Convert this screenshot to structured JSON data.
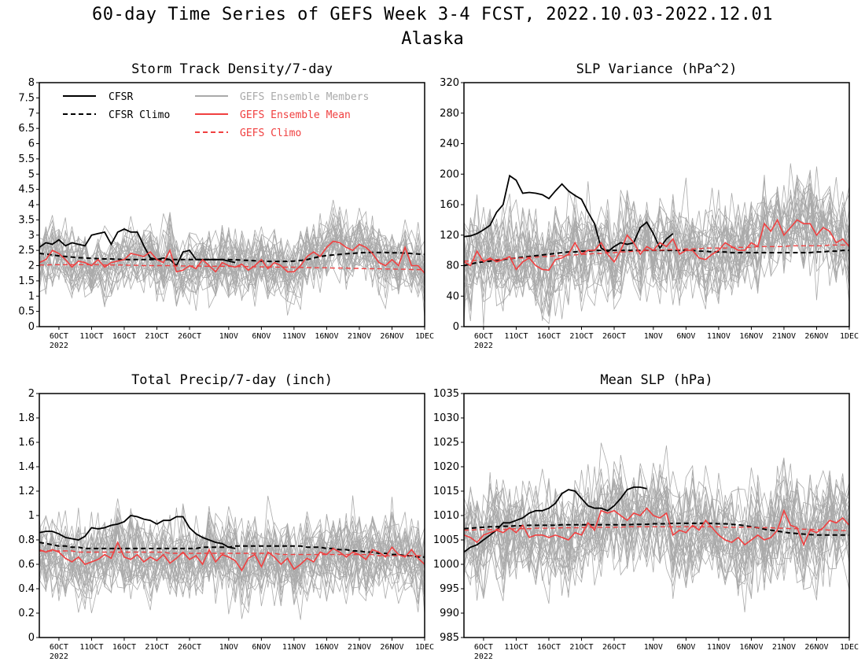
{
  "figure": {
    "title": "60-day Time Series of GEFS Week 3-4 FCST, 2022.10.03-2022.12.01",
    "subtitle": "Alaska"
  },
  "legend": {
    "cfsr": "CFSR",
    "cfsr_climo": "CFSR Climo",
    "gefs_members": "GEFS Ensemble Members",
    "gefs_mean": "GEFS Ensemble Mean",
    "gefs_climo": "GEFS Climo"
  },
  "colors": {
    "cfsr": "#000000",
    "members": "#aaaaaa",
    "gefs": "#f04040"
  },
  "x_ticks": [
    "6OCT",
    "11OCT",
    "16OCT",
    "21OCT",
    "26OCT",
    "1NOV",
    "6NOV",
    "11NOV",
    "16NOV",
    "21NOV",
    "26NOV",
    "1DEC"
  ],
  "x_year": "2022",
  "chart_data": [
    {
      "type": "line",
      "title": "Storm Track Density/7-day",
      "xlabel": "",
      "ylabel": "",
      "x_range": [
        "2022-10-03",
        "2022-12-01"
      ],
      "ylim": [
        0,
        8
      ],
      "yticks": [
        "0",
        "0.5",
        "1",
        "1.5",
        "2",
        "2.5",
        "3",
        "3.5",
        "4",
        "4.5",
        "5",
        "5.5",
        "6",
        "6.5",
        "7",
        "7.5",
        "8"
      ],
      "legend_placement": "top-left",
      "series": [
        {
          "name": "CFSR",
          "style": "solid-black",
          "values": [
            2.6,
            2.75,
            2.7,
            2.85,
            2.65,
            2.75,
            2.7,
            2.65,
            3.0,
            3.05,
            3.1,
            2.7,
            3.1,
            3.2,
            3.1,
            3.1,
            2.65,
            2.25,
            2.2,
            2.25,
            2.2,
            2.0,
            2.45,
            2.5,
            2.2,
            2.2,
            2.2,
            2.2,
            2.2,
            2.15,
            2.1
          ]
        },
        {
          "name": "CFSR Climo",
          "style": "dashed-black",
          "values": [
            2.4,
            2.38,
            2.35,
            2.32,
            2.3,
            2.28,
            2.26,
            2.25,
            2.24,
            2.23,
            2.22,
            2.22,
            2.21,
            2.2,
            2.2,
            2.2,
            2.2,
            2.2,
            2.2,
            2.2,
            2.2,
            2.2,
            2.2,
            2.2,
            2.2,
            2.2,
            2.2,
            2.2,
            2.2,
            2.2,
            2.19,
            2.18,
            2.17,
            2.16,
            2.15,
            2.14,
            2.14,
            2.14,
            2.14,
            2.15,
            2.17,
            2.2,
            2.25,
            2.3,
            2.33,
            2.35,
            2.37,
            2.39,
            2.4,
            2.42,
            2.43,
            2.43,
            2.43,
            2.43,
            2.42,
            2.42,
            2.41,
            2.4,
            2.38,
            2.37
          ]
        },
        {
          "name": "GEFS Ensemble Mean",
          "style": "solid-red",
          "values": [
            2.1,
            2.2,
            2.5,
            2.4,
            2.2,
            1.95,
            2.15,
            2.1,
            2.0,
            2.2,
            1.95,
            2.1,
            2.15,
            2.2,
            2.4,
            2.35,
            2.3,
            2.45,
            2.2,
            2.1,
            2.5,
            1.8,
            1.85,
            2.0,
            1.9,
            2.2,
            2.0,
            1.8,
            2.1,
            2.0,
            1.95,
            2.05,
            1.85,
            2.0,
            2.2,
            1.9,
            2.1,
            2.0,
            1.8,
            1.8,
            2.0,
            2.3,
            2.45,
            2.3,
            2.6,
            2.8,
            2.75,
            2.6,
            2.5,
            2.7,
            2.6,
            2.4,
            2.1,
            2.0,
            2.2,
            2.0,
            2.6,
            2.0,
            2.0,
            1.75
          ]
        },
        {
          "name": "GEFS Climo",
          "style": "dashed-red",
          "values": [
            2.02,
            2.02,
            2.03,
            2.03,
            2.03,
            2.03,
            2.03,
            2.03,
            2.03,
            2.03,
            2.02,
            2.02,
            2.02,
            2.02,
            2.01,
            2.01,
            2.0,
            2.0,
            2.0,
            2.0,
            2.0,
            1.99,
            1.99,
            1.99,
            1.99,
            1.98,
            1.98,
            1.98,
            1.98,
            1.98,
            1.97,
            1.97,
            1.97,
            1.96,
            1.96,
            1.96,
            1.95,
            1.95,
            1.95,
            1.95,
            1.94,
            1.94,
            1.93,
            1.93,
            1.93,
            1.92,
            1.92,
            1.92,
            1.91,
            1.91,
            1.9,
            1.9,
            1.9,
            1.89,
            1.89,
            1.88,
            1.88,
            1.87,
            1.87,
            1.86
          ]
        }
      ]
    },
    {
      "type": "line",
      "title": "SLP Variance (hPa^2)",
      "xlabel": "",
      "ylabel": "",
      "x_range": [
        "2022-10-03",
        "2022-12-01"
      ],
      "ylim": [
        0,
        320
      ],
      "yticks": [
        "0",
        "40",
        "80",
        "120",
        "160",
        "200",
        "240",
        "280",
        "320"
      ],
      "series": [
        {
          "name": "CFSR",
          "style": "solid-black",
          "values": [
            118,
            119,
            122,
            127,
            133,
            150,
            160,
            198,
            192,
            175,
            176,
            175,
            173,
            168,
            178,
            187,
            178,
            172,
            167,
            150,
            135,
            103,
            98,
            105,
            110,
            108,
            110,
            130,
            137,
            122,
            103,
            115,
            122
          ]
        },
        {
          "name": "CFSR Climo",
          "style": "dashed-black",
          "values": [
            80,
            82,
            84,
            85,
            86,
            87,
            88,
            89,
            90,
            91,
            92,
            93,
            94,
            95,
            96,
            97,
            98,
            98,
            99,
            99,
            100,
            100,
            100,
            100,
            100,
            100,
            100,
            100,
            100,
            100,
            100,
            100,
            100,
            100,
            100,
            100,
            99,
            99,
            98,
            98,
            98,
            97,
            97,
            97,
            97,
            97,
            97,
            97,
            97,
            97,
            97,
            97,
            97,
            97,
            98,
            98,
            99,
            99,
            100,
            100
          ]
        },
        {
          "name": "GEFS Ensemble Mean",
          "style": "solid-red",
          "values": [
            85,
            80,
            99,
            85,
            90,
            85,
            88,
            92,
            75,
            85,
            90,
            80,
            75,
            74,
            88,
            90,
            95,
            110,
            95,
            100,
            100,
            110,
            95,
            85,
            100,
            120,
            110,
            95,
            105,
            100,
            110,
            105,
            115,
            95,
            100,
            100,
            90,
            88,
            95,
            100,
            110,
            105,
            100,
            100,
            110,
            105,
            135,
            125,
            140,
            120,
            130,
            140,
            135,
            135,
            120,
            130,
            125,
            110,
            115,
            105
          ]
        },
        {
          "name": "GEFS Climo",
          "style": "dashed-red",
          "values": [
            86,
            86,
            87,
            87,
            88,
            88,
            89,
            89,
            90,
            90,
            91,
            91,
            92,
            92,
            93,
            93,
            94,
            94,
            95,
            95,
            96,
            96,
            97,
            97,
            98,
            98,
            99,
            99,
            100,
            100,
            100,
            101,
            101,
            101,
            102,
            102,
            102,
            103,
            103,
            103,
            103,
            104,
            104,
            104,
            104,
            105,
            105,
            105,
            105,
            105,
            106,
            106,
            106,
            106,
            106,
            106,
            107,
            107,
            107,
            107
          ]
        }
      ]
    },
    {
      "type": "line",
      "title": "Total Precip/7-day (inch)",
      "xlabel": "",
      "ylabel": "",
      "x_range": [
        "2022-10-03",
        "2022-12-01"
      ],
      "ylim": [
        0,
        2
      ],
      "yticks": [
        "0",
        "0.2",
        "0.4",
        "0.6",
        "0.8",
        "1",
        "1.2",
        "1.4",
        "1.6",
        "1.8",
        "2"
      ],
      "series": [
        {
          "name": "CFSR",
          "style": "solid-black",
          "values": [
            0.86,
            0.87,
            0.87,
            0.85,
            0.82,
            0.81,
            0.8,
            0.83,
            0.9,
            0.89,
            0.9,
            0.92,
            0.93,
            0.95,
            1.0,
            0.99,
            0.97,
            0.96,
            0.93,
            0.96,
            0.96,
            0.99,
            0.99,
            0.9,
            0.85,
            0.82,
            0.8,
            0.78,
            0.77,
            0.74,
            0.73
          ]
        },
        {
          "name": "CFSR Climo",
          "style": "dashed-black",
          "values": [
            0.78,
            0.77,
            0.76,
            0.75,
            0.75,
            0.74,
            0.74,
            0.73,
            0.73,
            0.73,
            0.73,
            0.73,
            0.73,
            0.73,
            0.73,
            0.73,
            0.73,
            0.73,
            0.73,
            0.73,
            0.73,
            0.73,
            0.73,
            0.73,
            0.73,
            0.74,
            0.74,
            0.74,
            0.74,
            0.74,
            0.75,
            0.75,
            0.75,
            0.75,
            0.75,
            0.75,
            0.75,
            0.75,
            0.75,
            0.75,
            0.75,
            0.74,
            0.74,
            0.74,
            0.73,
            0.73,
            0.72,
            0.72,
            0.71,
            0.71,
            0.7,
            0.7,
            0.69,
            0.69,
            0.68,
            0.68,
            0.67,
            0.67,
            0.66,
            0.66
          ]
        },
        {
          "name": "GEFS Ensemble Mean",
          "style": "solid-red",
          "values": [
            0.72,
            0.7,
            0.72,
            0.7,
            0.65,
            0.62,
            0.66,
            0.6,
            0.62,
            0.64,
            0.68,
            0.65,
            0.78,
            0.66,
            0.64,
            0.68,
            0.62,
            0.66,
            0.63,
            0.68,
            0.61,
            0.65,
            0.7,
            0.64,
            0.67,
            0.6,
            0.72,
            0.62,
            0.68,
            0.66,
            0.63,
            0.55,
            0.65,
            0.68,
            0.58,
            0.7,
            0.66,
            0.6,
            0.65,
            0.56,
            0.6,
            0.65,
            0.62,
            0.7,
            0.68,
            0.73,
            0.7,
            0.66,
            0.7,
            0.68,
            0.64,
            0.72,
            0.7,
            0.66,
            0.74,
            0.68,
            0.66,
            0.72,
            0.65,
            0.6
          ]
        },
        {
          "name": "GEFS Climo",
          "style": "dashed-red",
          "values": [
            0.71,
            0.71,
            0.71,
            0.71,
            0.71,
            0.71,
            0.7,
            0.7,
            0.7,
            0.7,
            0.7,
            0.7,
            0.7,
            0.7,
            0.7,
            0.7,
            0.7,
            0.7,
            0.7,
            0.7,
            0.69,
            0.69,
            0.69,
            0.69,
            0.69,
            0.69,
            0.69,
            0.69,
            0.69,
            0.69,
            0.69,
            0.69,
            0.69,
            0.69,
            0.69,
            0.69,
            0.69,
            0.68,
            0.68,
            0.68,
            0.68,
            0.68,
            0.68,
            0.68,
            0.68,
            0.68,
            0.68,
            0.68,
            0.68,
            0.68,
            0.68,
            0.68,
            0.67,
            0.67,
            0.67,
            0.67,
            0.67,
            0.67,
            0.67,
            0.67
          ]
        }
      ]
    },
    {
      "type": "line",
      "title": "Mean SLP (hPa)",
      "xlabel": "",
      "ylabel": "",
      "x_range": [
        "2022-10-03",
        "2022-12-01"
      ],
      "ylim": [
        985,
        1035
      ],
      "yticks": [
        "985",
        "990",
        "995",
        "1000",
        "1005",
        "1010",
        "1015",
        "1020",
        "1025",
        "1030",
        "1035"
      ],
      "series": [
        {
          "name": "CFSR",
          "style": "solid-black",
          "values": [
            1002.5,
            1003.5,
            1004.0,
            1005.0,
            1006.0,
            1007.0,
            1008.5,
            1008.5,
            1009.0,
            1009.5,
            1010.5,
            1011.0,
            1011.0,
            1011.5,
            1012.5,
            1014.5,
            1015.3,
            1015.0,
            1013.5,
            1012.0,
            1011.5,
            1011.5,
            1011.0,
            1012.0,
            1013.5,
            1015.3,
            1015.8,
            1015.8,
            1015.5
          ]
        },
        {
          "name": "CFSR Climo",
          "style": "dashed-black",
          "values": [
            1007.3,
            1007.4,
            1007.5,
            1007.6,
            1007.7,
            1007.7,
            1007.8,
            1007.8,
            1007.9,
            1007.9,
            1008.0,
            1008.0,
            1008.0,
            1008.0,
            1008.0,
            1008.1,
            1008.1,
            1008.1,
            1008.1,
            1008.1,
            1008.1,
            1008.1,
            1008.1,
            1008.1,
            1008.1,
            1008.1,
            1008.2,
            1008.2,
            1008.2,
            1008.3,
            1008.3,
            1008.3,
            1008.4,
            1008.4,
            1008.4,
            1008.4,
            1008.4,
            1008.4,
            1008.4,
            1008.3,
            1008.3,
            1008.2,
            1008.1,
            1007.9,
            1007.7,
            1007.5,
            1007.2,
            1007.0,
            1006.8,
            1006.6,
            1006.4,
            1006.3,
            1006.2,
            1006.1,
            1006.0,
            1006.0,
            1006.0,
            1006.0,
            1006.0,
            1006.0
          ]
        },
        {
          "name": "GEFS Ensemble Mean",
          "style": "solid-red",
          "values": [
            1006.0,
            1005.5,
            1004.5,
            1006.0,
            1006.5,
            1007.0,
            1006.5,
            1007.5,
            1006.5,
            1008.0,
            1005.5,
            1006.0,
            1006.0,
            1005.5,
            1006.0,
            1005.5,
            1005.0,
            1006.5,
            1006.0,
            1008.5,
            1007.0,
            1011.0,
            1010.5,
            1011.0,
            1010.0,
            1009.0,
            1010.5,
            1010.0,
            1011.5,
            1010.0,
            1009.5,
            1010.5,
            1006.0,
            1007.0,
            1006.5,
            1008.0,
            1007.0,
            1009.0,
            1007.5,
            1006.0,
            1005.0,
            1004.5,
            1005.5,
            1004.0,
            1005.0,
            1006.0,
            1005.0,
            1005.5,
            1007.0,
            1011.0,
            1008.0,
            1007.5,
            1004.0,
            1007.0,
            1006.5,
            1007.5,
            1009.0,
            1008.5,
            1009.5,
            1008.0
          ]
        },
        {
          "name": "GEFS Climo",
          "style": "dashed-red",
          "values": [
            1007.0,
            1007.0,
            1007.1,
            1007.1,
            1007.1,
            1007.2,
            1007.2,
            1007.2,
            1007.3,
            1007.3,
            1007.3,
            1007.4,
            1007.4,
            1007.4,
            1007.4,
            1007.5,
            1007.5,
            1007.5,
            1007.5,
            1007.6,
            1007.6,
            1007.6,
            1007.6,
            1007.6,
            1007.6,
            1007.7,
            1007.7,
            1007.7,
            1007.7,
            1007.7,
            1007.7,
            1007.7,
            1007.7,
            1007.7,
            1007.7,
            1007.7,
            1007.7,
            1007.7,
            1007.7,
            1007.7,
            1007.6,
            1007.6,
            1007.6,
            1007.6,
            1007.6,
            1007.5,
            1007.5,
            1007.5,
            1007.4,
            1007.4,
            1007.3,
            1007.3,
            1007.2,
            1007.2,
            1007.1,
            1007.1,
            1007.0,
            1007.0,
            1006.9,
            1006.9
          ]
        }
      ]
    }
  ]
}
